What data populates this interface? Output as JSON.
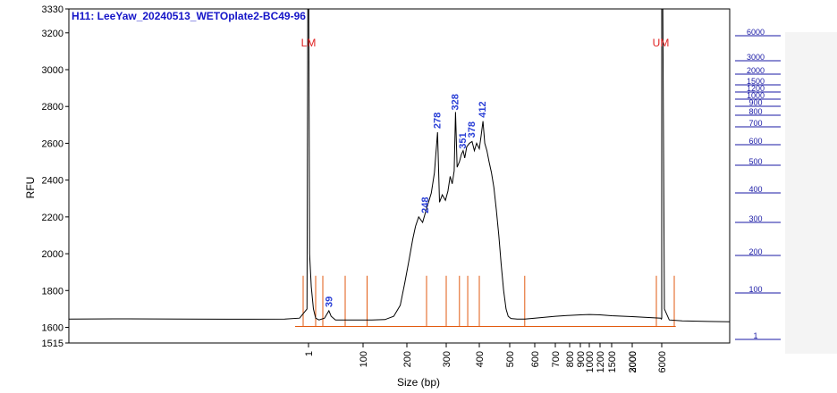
{
  "chart_data": {
    "type": "line",
    "title": "H11: LeeYaw_20240513_WETOplate2-BC49-96",
    "xlabel": "Size (bp)",
    "ylabel": "RFU",
    "ylim": [
      1515,
      3330
    ],
    "yticks": [
      1515,
      1600,
      1800,
      2000,
      2200,
      2400,
      2600,
      2800,
      3000,
      3200,
      3330
    ],
    "x_ticks": [
      "1",
      "100",
      "200",
      "300",
      "400",
      "500",
      "600",
      "700",
      "800",
      "900",
      "1000",
      "1200",
      "1500",
      "2000",
      "3000",
      "6000"
    ],
    "x_tick_positions": [
      1,
      100,
      200,
      300,
      400,
      500,
      600,
      700,
      800,
      900,
      1000,
      1200,
      1500,
      2000,
      3000,
      6000
    ],
    "ladder_labels": [
      "6000",
      "3000",
      "2000",
      "1500",
      "1200",
      "1000",
      "900",
      "800",
      "700",
      "600",
      "500",
      "400",
      "300",
      "200",
      "100",
      "1"
    ],
    "peak_labels": [
      {
        "label": "39",
        "x": 39,
        "y": 1690
      },
      {
        "label": "248",
        "x": 248,
        "y": 2200
      },
      {
        "label": "278",
        "x": 278,
        "y": 2660
      },
      {
        "label": "328",
        "x": 328,
        "y": 2760
      },
      {
        "label": "351",
        "x": 351,
        "y": 2550
      },
      {
        "label": "378",
        "x": 378,
        "y": 2610
      },
      {
        "label": "412",
        "x": 412,
        "y": 2720
      }
    ],
    "markers": [
      {
        "label": "LM",
        "x": 1
      },
      {
        "label": "UM",
        "x": 6000
      }
    ],
    "ladder_peaks_bp": [
      1,
      15,
      25,
      60,
      150,
      250,
      300,
      340,
      365,
      400,
      560,
      6000,
      6500
    ],
    "series": [
      {
        "values_xy": [
          [
            -160,
            1645
          ],
          [
            -120,
            1646
          ],
          [
            -80,
            1645
          ],
          [
            -40,
            1644
          ],
          [
            -15,
            1645
          ],
          [
            -5,
            1650
          ],
          [
            0,
            1700
          ],
          [
            0.5,
            3330
          ],
          [
            1,
            3330
          ],
          [
            1.5,
            3330
          ],
          [
            3,
            2000
          ],
          [
            6,
            1820
          ],
          [
            10,
            1700
          ],
          [
            14,
            1650
          ],
          [
            20,
            1640
          ],
          [
            30,
            1650
          ],
          [
            38,
            1690
          ],
          [
            42,
            1660
          ],
          [
            50,
            1640
          ],
          [
            80,
            1640
          ],
          [
            120,
            1640
          ],
          [
            150,
            1642
          ],
          [
            170,
            1660
          ],
          [
            185,
            1720
          ],
          [
            195,
            1840
          ],
          [
            205,
            1960
          ],
          [
            215,
            2080
          ],
          [
            222,
            2150
          ],
          [
            230,
            2200
          ],
          [
            240,
            2170
          ],
          [
            248,
            2230
          ],
          [
            255,
            2280
          ],
          [
            262,
            2330
          ],
          [
            270,
            2440
          ],
          [
            278,
            2660
          ],
          [
            283,
            2280
          ],
          [
            290,
            2320
          ],
          [
            298,
            2290
          ],
          [
            305,
            2340
          ],
          [
            312,
            2420
          ],
          [
            318,
            2380
          ],
          [
            324,
            2450
          ],
          [
            328,
            2770
          ],
          [
            333,
            2470
          ],
          [
            340,
            2500
          ],
          [
            346,
            2540
          ],
          [
            351,
            2560
          ],
          [
            356,
            2520
          ],
          [
            362,
            2580
          ],
          [
            370,
            2600
          ],
          [
            378,
            2610
          ],
          [
            385,
            2560
          ],
          [
            392,
            2600
          ],
          [
            400,
            2570
          ],
          [
            406,
            2640
          ],
          [
            412,
            2720
          ],
          [
            418,
            2600
          ],
          [
            425,
            2560
          ],
          [
            432,
            2500
          ],
          [
            440,
            2440
          ],
          [
            448,
            2360
          ],
          [
            456,
            2240
          ],
          [
            464,
            2100
          ],
          [
            472,
            1940
          ],
          [
            480,
            1800
          ],
          [
            488,
            1700
          ],
          [
            495,
            1660
          ],
          [
            505,
            1648
          ],
          [
            530,
            1645
          ],
          [
            560,
            1645
          ],
          [
            600,
            1650
          ],
          [
            700,
            1660
          ],
          [
            800,
            1665
          ],
          [
            900,
            1668
          ],
          [
            1000,
            1670
          ],
          [
            1200,
            1668
          ],
          [
            1500,
            1663
          ],
          [
            2000,
            1658
          ],
          [
            3000,
            1650
          ],
          [
            5000,
            1645
          ],
          [
            5900,
            1650
          ],
          [
            5980,
            1700
          ],
          [
            6000,
            3330
          ],
          [
            6020,
            3330
          ],
          [
            6050,
            1700
          ],
          [
            6200,
            1640
          ],
          [
            6800,
            1635
          ],
          [
            8000,
            1632
          ],
          [
            9000,
            1630
          ]
        ]
      }
    ],
    "colors": {
      "trace": "#000000",
      "ladder_lines": "#e25a10",
      "baseline": "#e25a10",
      "peak_labels": "#2a3fd6",
      "markers": "#e02020",
      "title": "#1515c8",
      "ladder_axis": "#1a1aa6"
    },
    "grid": false
  }
}
